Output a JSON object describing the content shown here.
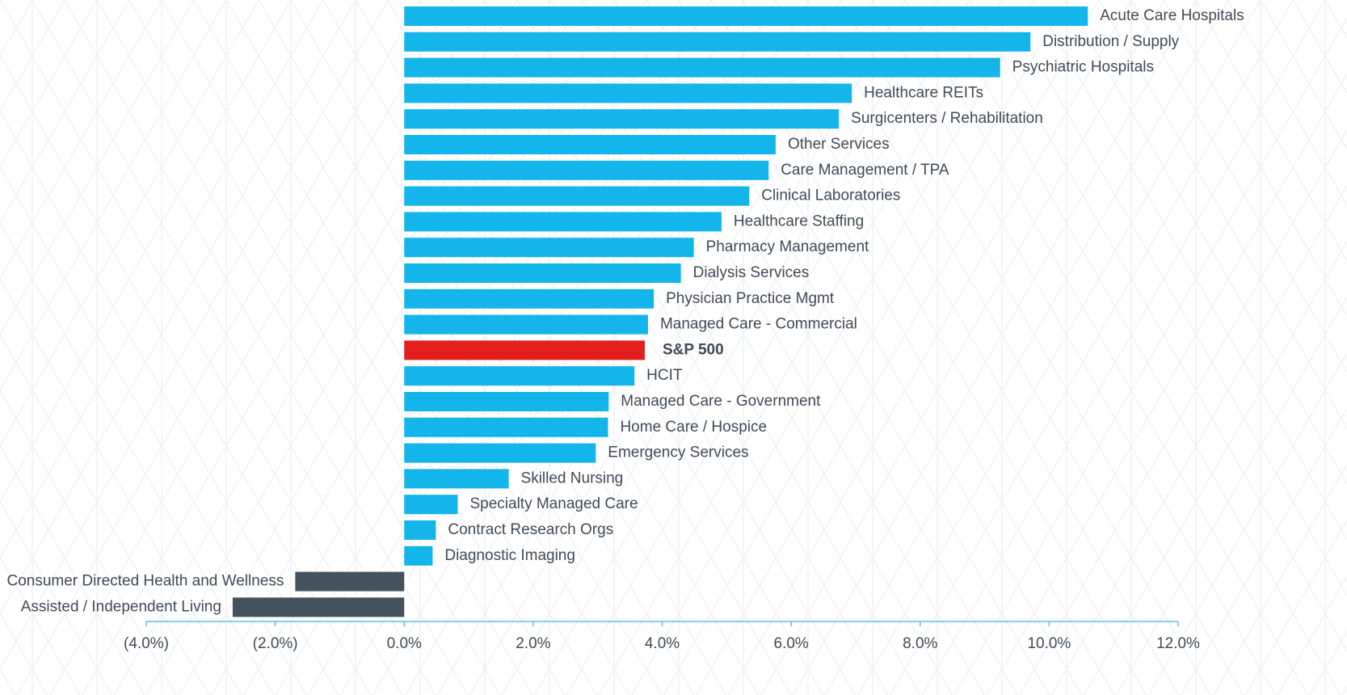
{
  "chart_data": {
    "type": "barh",
    "categories": [
      "Acute Care Hospitals",
      "Distribution / Supply",
      "Psychiatric Hospitals",
      "Healthcare REITs",
      "Surgicenters / Rehabilitation",
      "Other Services",
      "Care Management / TPA",
      "Clinical Laboratories",
      "Healthcare Staffing",
      "Pharmacy Management",
      "Dialysis Services",
      "Physician Practice Mgmt",
      "Managed Care - Commercial",
      "S&P 500",
      "HCIT",
      "Managed Care - Government",
      "Home Care / Hospice",
      "Emergency Services",
      "Skilled Nursing",
      "Specialty Managed Care",
      "Contract Research Orgs",
      "Diagnostic Imaging",
      "Consumer Directed Health and Wellness",
      "Assisted / Independent Living"
    ],
    "values": [
      10.6,
      9.71,
      9.24,
      6.94,
      6.74,
      5.76,
      5.65,
      5.35,
      4.92,
      4.49,
      4.29,
      3.87,
      3.78,
      3.73,
      3.57,
      3.17,
      3.16,
      2.97,
      1.62,
      0.83,
      0.49,
      0.44,
      -1.69,
      -2.66
    ],
    "colors": [
      "#13b5ea",
      "#13b5ea",
      "#13b5ea",
      "#13b5ea",
      "#13b5ea",
      "#13b5ea",
      "#13b5ea",
      "#13b5ea",
      "#13b5ea",
      "#13b5ea",
      "#13b5ea",
      "#13b5ea",
      "#13b5ea",
      "#e31e1e",
      "#13b5ea",
      "#13b5ea",
      "#13b5ea",
      "#13b5ea",
      "#13b5ea",
      "#13b5ea",
      "#13b5ea",
      "#13b5ea",
      "#44525e",
      "#44525e"
    ],
    "highlight_color": "#e31e1e",
    "xlim": [
      -4,
      12
    ],
    "xticks": [
      {
        "value": -4,
        "label": "(4.0%)"
      },
      {
        "value": -2,
        "label": "(2.0%)"
      },
      {
        "value": 0,
        "label": "0.0%"
      },
      {
        "value": 2,
        "label": "2.0%"
      },
      {
        "value": 4,
        "label": "4.0%"
      },
      {
        "value": 6,
        "label": "6.0%"
      },
      {
        "value": 8,
        "label": "8.0%"
      },
      {
        "value": 10,
        "label": "10.0%"
      },
      {
        "value": 12,
        "label": "12.0%"
      }
    ]
  }
}
